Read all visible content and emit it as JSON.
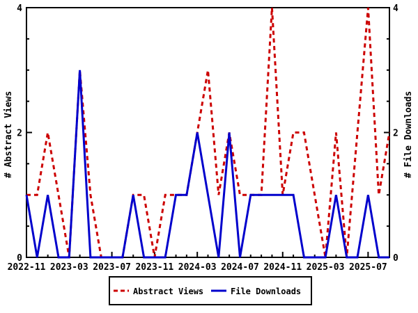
{
  "chart_data": {
    "type": "line",
    "title": "",
    "x": [
      "2022-11",
      "2022-12",
      "2023-01",
      "2023-02",
      "2023-03",
      "2023-04",
      "2023-05",
      "2023-06",
      "2023-07",
      "2023-08",
      "2023-09",
      "2023-10",
      "2023-11",
      "2023-12",
      "2024-01",
      "2024-02",
      "2024-03",
      "2024-04",
      "2024-05",
      "2024-06",
      "2024-07",
      "2024-08",
      "2024-09",
      "2024-10",
      "2024-11",
      "2024-12",
      "2025-01",
      "2025-02",
      "2025-03",
      "2025-04",
      "2025-05",
      "2025-06",
      "2025-07",
      "2025-08",
      "2025-09"
    ],
    "series": [
      {
        "name": "Abstract Views",
        "style": "dashed",
        "color": "#cc0000",
        "values": [
          1,
          1,
          2,
          1,
          0,
          3,
          1,
          0,
          0,
          0,
          1,
          1,
          0,
          1,
          1,
          1,
          2,
          3,
          1,
          2,
          1,
          1,
          1,
          4,
          1,
          2,
          2,
          1,
          0,
          2,
          0,
          2,
          4,
          1,
          2
        ]
      },
      {
        "name": "File Downloads",
        "style": "solid",
        "color": "#0000cc",
        "values": [
          1,
          0,
          1,
          0,
          0,
          3,
          0,
          0,
          0,
          0,
          1,
          0,
          0,
          0,
          1,
          1,
          2,
          1,
          0,
          2,
          0,
          1,
          1,
          1,
          1,
          1,
          0,
          0,
          0,
          1,
          0,
          0,
          1,
          0,
          0
        ]
      }
    ],
    "ylabel_left": "# Abstract Views",
    "ylabel_right": "# File Downloads",
    "ylim": [
      0,
      4
    ],
    "ytick_major": [
      0,
      2,
      4
    ],
    "ytick_minor_step": 0.5,
    "xtick_labels": [
      "2022-11",
      "2023-03",
      "2023-07",
      "2023-11",
      "2024-03",
      "2024-07",
      "2024-11",
      "2025-03",
      "2025-07"
    ],
    "xtick_label_every": 4,
    "grid": false,
    "legend_position": "bottom-center",
    "axis_color": "#000000",
    "background_color": "#ffffff"
  },
  "legend": {
    "items": [
      {
        "label": "Abstract Views"
      },
      {
        "label": "File Downloads"
      }
    ]
  }
}
